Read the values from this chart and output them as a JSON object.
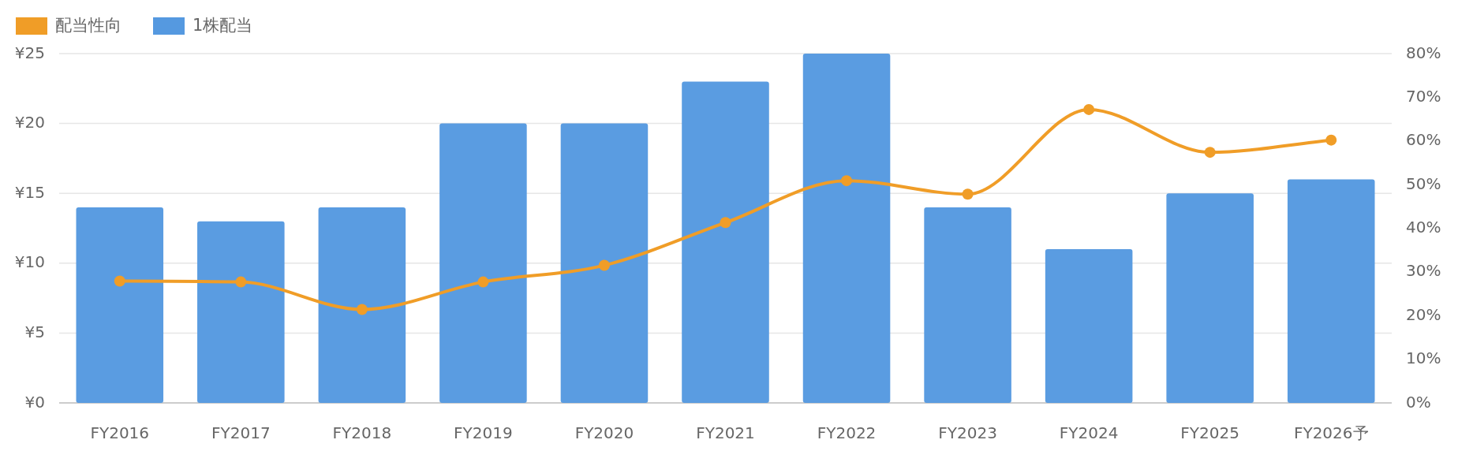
{
  "chart_data": {
    "type": "bar",
    "categories": [
      "FY2016",
      "FY2017",
      "FY2018",
      "FY2019",
      "FY2020",
      "FY2021",
      "FY2022",
      "FY2023",
      "FY2024",
      "FY2025",
      "FY2026予"
    ],
    "series": [
      {
        "name": "配当性向",
        "type": "line",
        "axis": "y2",
        "color": "#f09d27",
        "marker": "circle",
        "values": [
          27.9,
          27.7,
          21.4,
          27.7,
          31.5,
          41.3,
          50.9,
          47.8,
          67.2,
          57.4,
          60.2
        ]
      },
      {
        "name": "1株配当",
        "color": "#5599e0",
        "values": [
          14,
          13,
          14,
          20,
          20,
          23,
          25,
          14,
          11,
          15,
          16
        ]
      }
    ],
    "ylim": [
      0,
      25
    ],
    "yticks": [
      {
        "value": 0,
        "label": "¥0"
      },
      {
        "value": 5,
        "label": "¥5"
      },
      {
        "value": 10,
        "label": "¥10"
      },
      {
        "value": 15,
        "label": "¥15"
      },
      {
        "value": 20,
        "label": "¥20"
      },
      {
        "value": 25,
        "label": "¥25"
      }
    ],
    "y2lim": [
      0,
      80
    ],
    "y2ticks": [
      {
        "value": 0,
        "label": "0%"
      },
      {
        "value": 10,
        "label": "10%"
      },
      {
        "value": 20,
        "label": "20%"
      },
      {
        "value": 30,
        "label": "30%"
      },
      {
        "value": 40,
        "label": "40%"
      },
      {
        "value": 50,
        "label": "50%"
      },
      {
        "value": 60,
        "label": "60%"
      },
      {
        "value": 70,
        "label": "70%"
      },
      {
        "value": 80,
        "label": "80%"
      }
    ],
    "grid": "y",
    "legend": "top left"
  }
}
